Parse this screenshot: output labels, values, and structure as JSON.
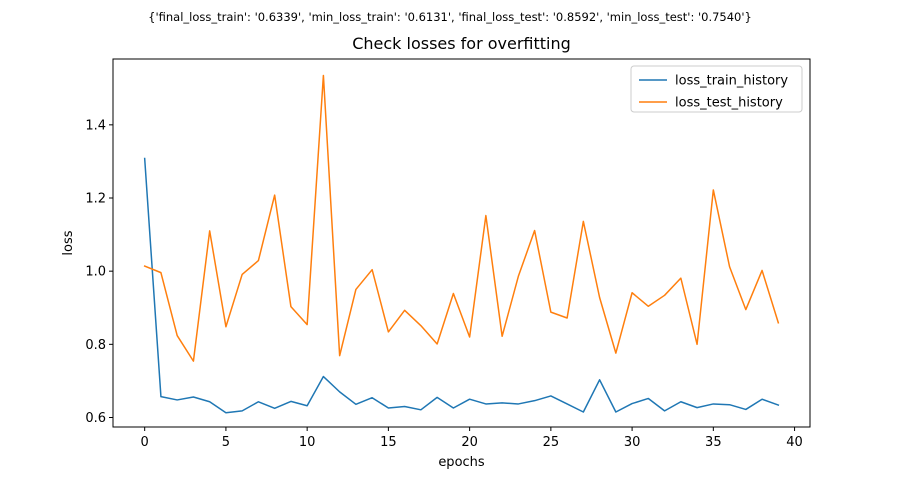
{
  "suptitle": "{'final_loss_train': '0.6339', 'min_loss_train': '0.6131', 'final_loss_test': '0.8592', 'min_loss_test': '0.7540'}",
  "chart_data": {
    "type": "line",
    "title": "Check losses for overfitting",
    "xlabel": "epochs",
    "ylabel": "loss",
    "xlim": [
      -1.95,
      40.95
    ],
    "ylim": [
      0.574,
      1.58
    ],
    "xticks": [
      0,
      5,
      10,
      15,
      20,
      25,
      30,
      35,
      40
    ],
    "yticks": [
      0.6,
      0.8,
      1.0,
      1.2,
      1.4
    ],
    "ytick_labels": [
      "0.6",
      "0.8",
      "1.0",
      "1.2",
      "1.4"
    ],
    "grid": false,
    "legend_position": "upper right",
    "x": [
      0,
      1,
      2,
      3,
      4,
      5,
      6,
      7,
      8,
      9,
      10,
      11,
      12,
      13,
      14,
      15,
      16,
      17,
      18,
      19,
      20,
      21,
      22,
      23,
      24,
      25,
      26,
      27,
      28,
      29,
      30,
      31,
      32,
      33,
      34,
      35,
      36,
      37,
      38,
      39
    ],
    "series": [
      {
        "name": "loss_train_history",
        "color": "#1f77b4",
        "values": [
          1.308,
          0.657,
          0.648,
          0.656,
          0.643,
          0.613,
          0.618,
          0.643,
          0.625,
          0.644,
          0.632,
          0.712,
          0.67,
          0.636,
          0.654,
          0.626,
          0.63,
          0.621,
          0.655,
          0.626,
          0.65,
          0.637,
          0.64,
          0.637,
          0.646,
          0.659,
          0.637,
          0.615,
          0.703,
          0.615,
          0.638,
          0.652,
          0.618,
          0.643,
          0.627,
          0.637,
          0.635,
          0.622,
          0.65,
          0.634
        ]
      },
      {
        "name": "loss_test_history",
        "color": "#ff7f0e",
        "values": [
          1.014,
          0.996,
          0.824,
          0.754,
          1.11,
          0.848,
          0.991,
          1.029,
          1.208,
          0.903,
          0.854,
          1.535,
          0.769,
          0.95,
          1.004,
          0.834,
          0.893,
          0.851,
          0.801,
          0.939,
          0.82,
          1.152,
          0.822,
          0.986,
          1.111,
          0.888,
          0.872,
          1.136,
          0.928,
          0.776,
          0.941,
          0.904,
          0.934,
          0.981,
          0.8,
          1.222,
          1.012,
          0.895,
          1.002,
          0.859
        ]
      }
    ]
  }
}
